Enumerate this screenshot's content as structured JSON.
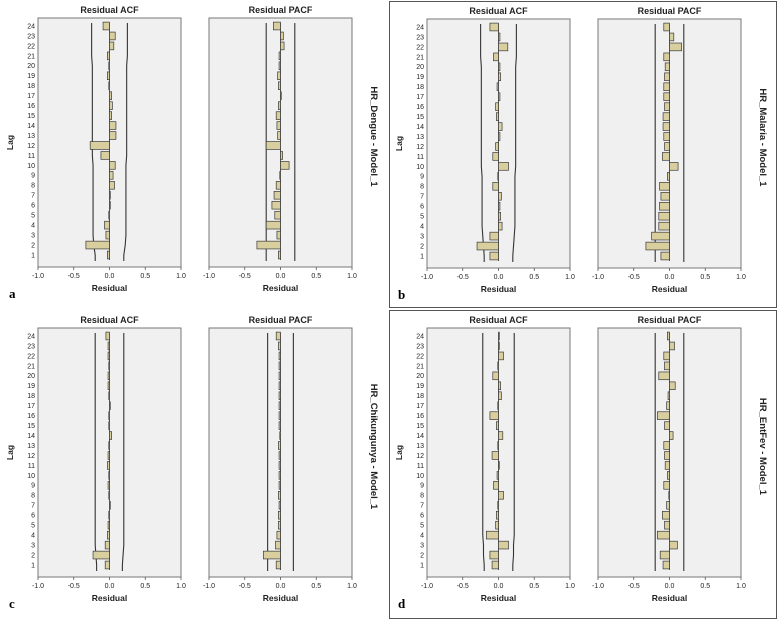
{
  "chart_data": [
    {
      "type": "bar",
      "panel_label": "a",
      "model": "HR_Dengue - Model_1",
      "ylabel": "Lag",
      "xlabel": "Residual",
      "xlim": [
        -1.0,
        1.0
      ],
      "xticks": [
        "-1.0",
        "-0.5",
        "0.0",
        "0.5",
        "1.0"
      ],
      "lags": [
        1,
        2,
        3,
        4,
        5,
        6,
        7,
        8,
        9,
        10,
        11,
        12,
        13,
        14,
        15,
        16,
        17,
        18,
        19,
        20,
        21,
        22,
        23,
        24
      ],
      "acf": {
        "title": "Residual ACF",
        "values": [
          -0.03,
          -0.33,
          -0.05,
          -0.07,
          -0.01,
          0.01,
          0.0,
          0.07,
          0.05,
          0.08,
          -0.12,
          -0.27,
          0.09,
          0.09,
          0.03,
          0.04,
          0.03,
          -0.01,
          -0.03,
          -0.01,
          -0.03,
          0.06,
          0.08,
          -0.09
        ],
        "conf_upper": [
          0.2,
          0.22,
          0.23,
          0.23,
          0.23,
          0.23,
          0.23,
          0.23,
          0.23,
          0.23,
          0.24,
          0.24,
          0.24,
          0.24,
          0.24,
          0.24,
          0.24,
          0.24,
          0.24,
          0.24,
          0.25,
          0.25,
          0.25,
          0.25
        ]
      },
      "pacf": {
        "title": "Residual PACF",
        "values": [
          -0.03,
          -0.33,
          -0.05,
          -0.2,
          -0.08,
          -0.12,
          -0.09,
          -0.06,
          -0.01,
          0.12,
          0.03,
          -0.2,
          -0.04,
          -0.05,
          -0.06,
          -0.03,
          0.01,
          -0.03,
          -0.04,
          -0.02,
          -0.02,
          0.05,
          0.04,
          -0.1
        ],
        "conf": 0.2
      }
    },
    {
      "type": "bar",
      "panel_label": "b",
      "model": "HR_Malaria - Model_1",
      "ylabel": "Lag",
      "xlabel": "Residual",
      "xlim": [
        -1.0,
        1.0
      ],
      "xticks": [
        "-1.0",
        "-0.5",
        "0.0",
        "0.5",
        "1.0"
      ],
      "lags": [
        1,
        2,
        3,
        4,
        5,
        6,
        7,
        8,
        9,
        10,
        11,
        12,
        13,
        14,
        15,
        16,
        17,
        18,
        19,
        20,
        21,
        22,
        23,
        24
      ],
      "acf": {
        "title": "Residual ACF",
        "values": [
          -0.12,
          -0.3,
          -0.12,
          0.05,
          0.03,
          0.02,
          0.04,
          -0.08,
          -0.01,
          0.14,
          -0.08,
          -0.04,
          0.02,
          0.05,
          -0.03,
          -0.04,
          0.02,
          -0.02,
          0.03,
          0.02,
          -0.07,
          0.13,
          0.02,
          -0.12
        ],
        "conf_upper": [
          0.2,
          0.21,
          0.22,
          0.23,
          0.23,
          0.23,
          0.23,
          0.23,
          0.23,
          0.24,
          0.24,
          0.24,
          0.24,
          0.24,
          0.24,
          0.24,
          0.24,
          0.24,
          0.24,
          0.24,
          0.25,
          0.25,
          0.25,
          0.25
        ]
      },
      "pacf": {
        "title": "Residual PACF",
        "values": [
          -0.12,
          -0.33,
          -0.25,
          -0.15,
          -0.15,
          -0.14,
          -0.12,
          -0.14,
          -0.03,
          0.12,
          -0.1,
          -0.07,
          -0.08,
          -0.09,
          -0.09,
          -0.07,
          -0.08,
          -0.08,
          -0.07,
          -0.06,
          -0.08,
          0.17,
          0.06,
          -0.08
        ],
        "conf": 0.2
      }
    },
    {
      "type": "bar",
      "panel_label": "c",
      "model": "HR_Chikungunya - Model_1",
      "ylabel": "Lag",
      "xlabel": "Residual",
      "xlim": [
        -1.0,
        1.0
      ],
      "xticks": [
        "-1.0",
        "-0.5",
        "0.0",
        "0.5",
        "1.0"
      ],
      "lags": [
        1,
        2,
        3,
        4,
        5,
        6,
        7,
        8,
        9,
        10,
        11,
        12,
        13,
        14,
        15,
        16,
        17,
        18,
        19,
        20,
        21,
        22,
        23,
        24
      ],
      "acf": {
        "title": "Residual ACF",
        "values": [
          -0.06,
          -0.23,
          -0.06,
          -0.03,
          -0.02,
          -0.01,
          0.0,
          -0.01,
          -0.02,
          -0.01,
          -0.03,
          -0.02,
          -0.01,
          0.03,
          -0.01,
          -0.01,
          0.0,
          -0.01,
          -0.02,
          -0.02,
          -0.01,
          -0.02,
          -0.02,
          -0.05
        ],
        "conf_upper": [
          0.18,
          0.19,
          0.2,
          0.2,
          0.2,
          0.2,
          0.2,
          0.2,
          0.2,
          0.2,
          0.2,
          0.2,
          0.2,
          0.2,
          0.2,
          0.2,
          0.2,
          0.2,
          0.2,
          0.2,
          0.2,
          0.2,
          0.2,
          0.2
        ]
      },
      "pacf": {
        "title": "Residual PACF",
        "values": [
          -0.06,
          -0.24,
          -0.07,
          -0.05,
          -0.03,
          -0.03,
          -0.02,
          -0.03,
          -0.02,
          -0.02,
          -0.02,
          -0.02,
          -0.03,
          -0.01,
          -0.02,
          -0.02,
          -0.02,
          -0.02,
          -0.02,
          -0.02,
          -0.02,
          -0.02,
          -0.03,
          -0.06
        ],
        "conf": 0.18
      }
    },
    {
      "type": "bar",
      "panel_label": "d",
      "model": "HR_EntFev - Model_1",
      "ylabel": "Lag",
      "xlabel": "Residual",
      "xlim": [
        -1.0,
        1.0
      ],
      "xticks": [
        "-1.0",
        "-0.5",
        "0.0",
        "0.5",
        "1.0"
      ],
      "lags": [
        1,
        2,
        3,
        4,
        5,
        6,
        7,
        8,
        9,
        10,
        11,
        12,
        13,
        14,
        15,
        16,
        17,
        18,
        19,
        20,
        21,
        22,
        23,
        24
      ],
      "acf": {
        "title": "Residual ACF",
        "values": [
          -0.09,
          -0.12,
          0.14,
          -0.17,
          -0.04,
          -0.03,
          -0.01,
          0.07,
          -0.07,
          -0.02,
          0.01,
          -0.09,
          -0.01,
          0.06,
          -0.03,
          -0.12,
          -0.01,
          0.04,
          0.03,
          -0.08,
          -0.01,
          0.07,
          0.0,
          0.0
        ],
        "conf_upper": [
          0.2,
          0.21,
          0.21,
          0.22,
          0.22,
          0.22,
          0.22,
          0.22,
          0.22,
          0.22,
          0.22,
          0.22,
          0.22,
          0.22,
          0.22,
          0.22,
          0.22,
          0.22,
          0.22,
          0.22,
          0.22,
          0.22,
          0.22,
          0.22
        ]
      },
      "pacf": {
        "title": "Residual PACF",
        "values": [
          -0.09,
          -0.13,
          0.11,
          -0.17,
          -0.07,
          -0.1,
          -0.04,
          -0.01,
          -0.08,
          -0.03,
          -0.06,
          -0.07,
          -0.08,
          0.05,
          -0.07,
          -0.17,
          -0.04,
          -0.02,
          0.08,
          -0.15,
          -0.07,
          -0.08,
          0.07,
          -0.03
        ],
        "conf": 0.2
      }
    }
  ]
}
